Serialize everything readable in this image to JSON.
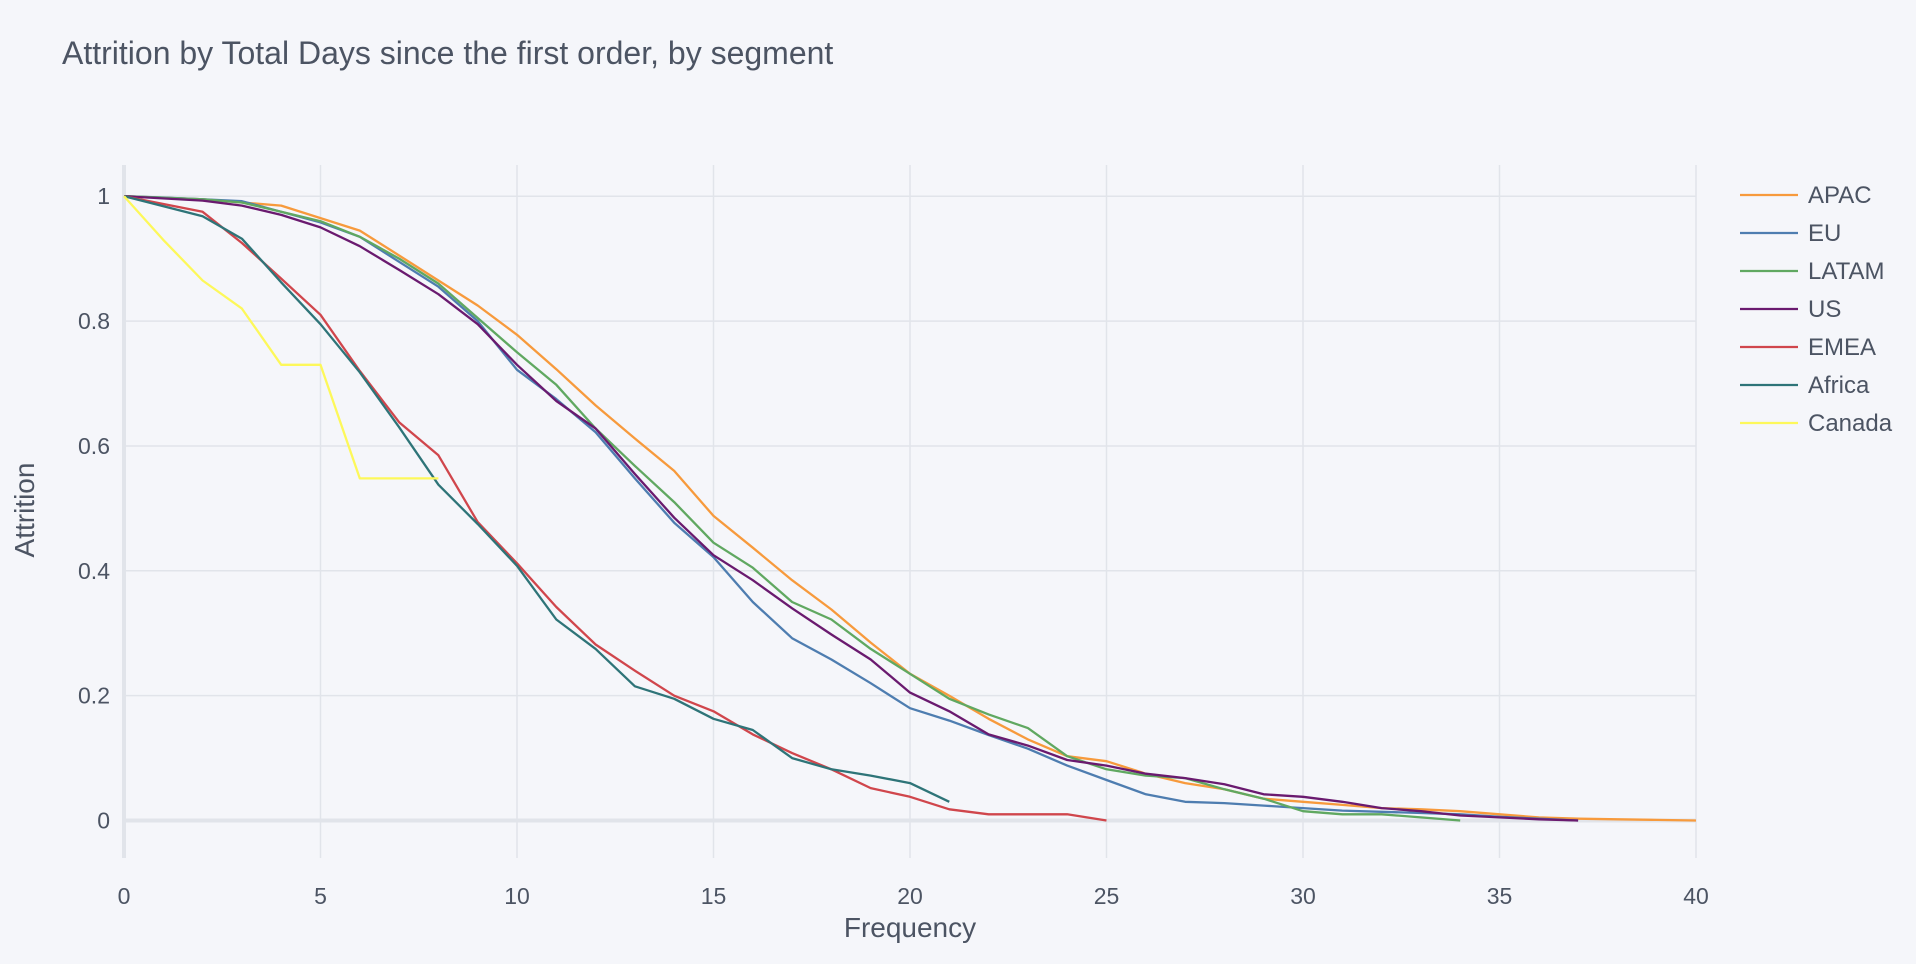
{
  "chart_data": {
    "type": "line",
    "title": "Attrition by Total Days since the first order, by segment",
    "xlabel": "Frequency",
    "ylabel": "Attrition",
    "xlim": [
      0,
      40
    ],
    "ylim": [
      -0.06,
      1.05
    ],
    "x_ticks": [
      0,
      5,
      10,
      15,
      20,
      25,
      30,
      35,
      40
    ],
    "y_ticks": [
      0,
      0.2,
      0.4,
      0.6,
      0.8,
      1
    ],
    "x_tick_labels": [
      "0",
      "5",
      "10",
      "15",
      "20",
      "25",
      "30",
      "35",
      "40"
    ],
    "y_tick_labels": [
      "0",
      "0.2",
      "0.4",
      "0.6",
      "0.8",
      "1"
    ],
    "grid": true,
    "legend_position": "top-right",
    "series": [
      {
        "name": "APAC",
        "color": "#f79a3c",
        "x": [
          0,
          2,
          3,
          4,
          5,
          6,
          7,
          8,
          9,
          10,
          11,
          12,
          13,
          14,
          15,
          16,
          17,
          18,
          19,
          20,
          21,
          22,
          23,
          24,
          25,
          26,
          27,
          28,
          29,
          30,
          31,
          32,
          33,
          34,
          35,
          36,
          37,
          38,
          39,
          40
        ],
        "y": [
          1.0,
          0.995,
          0.99,
          0.985,
          0.965,
          0.945,
          0.905,
          0.865,
          0.825,
          0.778,
          0.723,
          0.665,
          0.612,
          0.56,
          0.488,
          0.437,
          0.385,
          0.338,
          0.285,
          0.235,
          0.2,
          0.163,
          0.13,
          0.103,
          0.095,
          0.075,
          0.06,
          0.05,
          0.035,
          0.03,
          0.025,
          0.02,
          0.018,
          0.015,
          0.01,
          0.005,
          0.003,
          0.002,
          0.001,
          0.0
        ]
      },
      {
        "name": "EU",
        "color": "#4e7db0",
        "x": [
          0,
          1,
          2,
          3,
          4,
          5,
          6,
          7,
          8,
          9,
          10,
          11,
          12,
          13,
          14,
          15,
          16,
          17,
          18,
          19,
          20,
          21,
          22,
          23,
          24,
          25,
          26,
          27,
          28,
          29,
          30,
          31,
          32,
          33,
          34,
          35,
          36,
          37
        ],
        "y": [
          1.0,
          0.998,
          0.995,
          0.992,
          0.975,
          0.958,
          0.935,
          0.895,
          0.855,
          0.8,
          0.722,
          0.675,
          0.622,
          0.548,
          0.477,
          0.422,
          0.35,
          0.292,
          0.258,
          0.22,
          0.18,
          0.16,
          0.137,
          0.115,
          0.088,
          0.065,
          0.042,
          0.03,
          0.028,
          0.024,
          0.02,
          0.016,
          0.014,
          0.012,
          0.01,
          0.006,
          0.003,
          0.0
        ]
      },
      {
        "name": "LATAM",
        "color": "#60a861",
        "x": [
          0,
          2,
          3,
          4,
          5,
          6,
          7,
          8,
          9,
          10,
          11,
          12,
          13,
          14,
          15,
          16,
          17,
          18,
          19,
          20,
          21,
          22,
          23,
          24,
          25,
          26,
          27,
          28,
          29,
          30,
          31,
          32,
          33,
          34
        ],
        "y": [
          1.0,
          0.995,
          0.99,
          0.975,
          0.96,
          0.935,
          0.9,
          0.86,
          0.805,
          0.75,
          0.698,
          0.628,
          0.568,
          0.51,
          0.445,
          0.405,
          0.35,
          0.322,
          0.275,
          0.235,
          0.195,
          0.17,
          0.148,
          0.103,
          0.082,
          0.072,
          0.068,
          0.05,
          0.035,
          0.015,
          0.01,
          0.01,
          0.005,
          0.0
        ]
      },
      {
        "name": "US",
        "color": "#6a1a6f",
        "x": [
          0,
          2,
          3,
          4,
          5,
          6,
          7,
          8,
          9,
          10,
          11,
          12,
          13,
          14,
          15,
          16,
          17,
          18,
          19,
          20,
          21,
          22,
          23,
          24,
          25,
          26,
          27,
          28,
          29,
          30,
          31,
          32,
          33,
          34,
          35,
          36,
          37
        ],
        "y": [
          1.0,
          0.993,
          0.985,
          0.97,
          0.95,
          0.92,
          0.882,
          0.843,
          0.795,
          0.73,
          0.672,
          0.628,
          0.555,
          0.485,
          0.425,
          0.385,
          0.34,
          0.298,
          0.258,
          0.205,
          0.175,
          0.138,
          0.12,
          0.097,
          0.088,
          0.075,
          0.068,
          0.058,
          0.042,
          0.038,
          0.03,
          0.02,
          0.015,
          0.008,
          0.005,
          0.002,
          0.0
        ]
      },
      {
        "name": "EMEA",
        "color": "#d0464c",
        "x": [
          0,
          2,
          3,
          4,
          5,
          6,
          7,
          8,
          9,
          10,
          11,
          12,
          13,
          14,
          15,
          16,
          17,
          18,
          19,
          20,
          21,
          22,
          23,
          24,
          25
        ],
        "y": [
          1.0,
          0.975,
          0.925,
          0.868,
          0.81,
          0.72,
          0.638,
          0.585,
          0.478,
          0.412,
          0.342,
          0.282,
          0.24,
          0.2,
          0.175,
          0.138,
          0.108,
          0.082,
          0.052,
          0.038,
          0.018,
          0.01,
          0.01,
          0.01,
          0.0
        ]
      },
      {
        "name": "Africa",
        "color": "#2e7478",
        "x": [
          0,
          2,
          3,
          4,
          5,
          6,
          7,
          8,
          9,
          10,
          11,
          12,
          13,
          14,
          15,
          16,
          17,
          18,
          19,
          20,
          21
        ],
        "y": [
          1.0,
          0.968,
          0.932,
          0.862,
          0.795,
          0.718,
          0.63,
          0.538,
          0.475,
          0.408,
          0.322,
          0.275,
          0.215,
          0.195,
          0.163,
          0.145,
          0.1,
          0.082,
          0.072,
          0.06,
          0.03
        ]
      },
      {
        "name": "Canada",
        "color": "#fdf85a",
        "x": [
          0,
          1,
          2,
          3,
          4,
          5,
          6,
          7,
          8
        ],
        "y": [
          1.0,
          0.93,
          0.865,
          0.82,
          0.73,
          0.73,
          0.548,
          0.548,
          0.548
        ]
      }
    ]
  }
}
